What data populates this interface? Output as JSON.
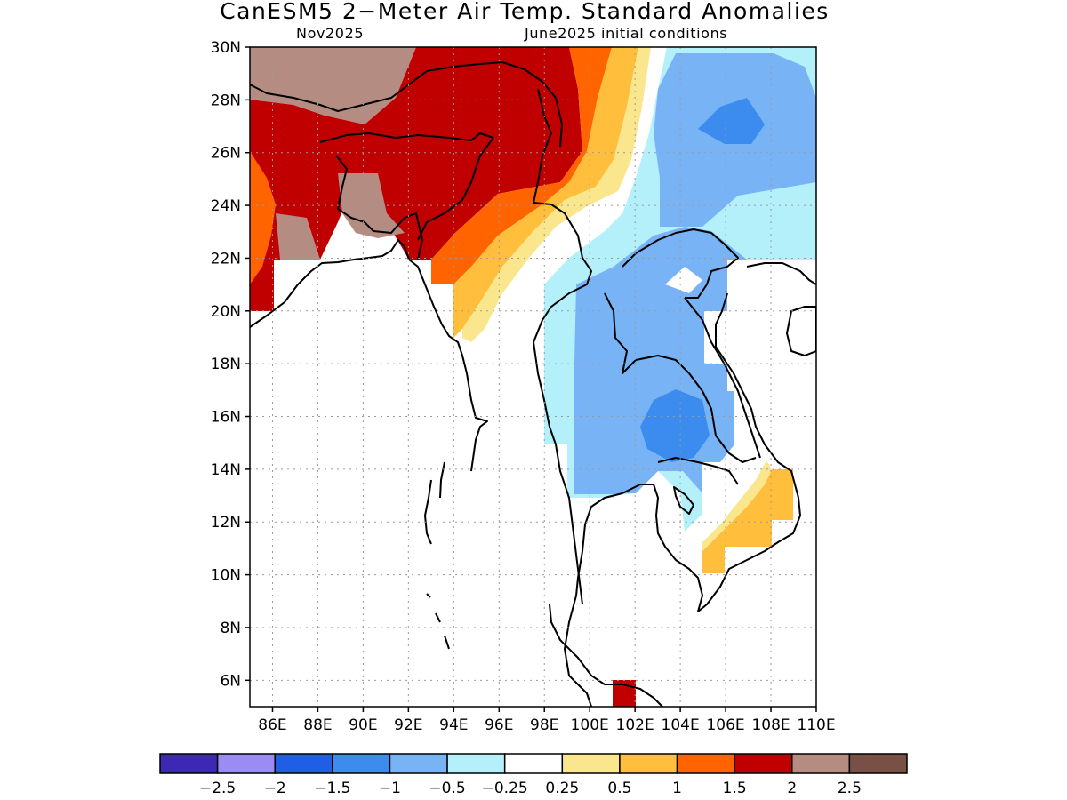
{
  "header": {
    "title": "CanESM5 2−Meter Air Temp. Standard Anomalies",
    "target_month": "Nov2025",
    "initial_conditions": "June2025 initial conditions"
  },
  "map": {
    "lat_labels": [
      "30N",
      "28N",
      "26N",
      "24N",
      "22N",
      "20N",
      "18N",
      "16N",
      "14N",
      "12N",
      "10N",
      "8N",
      "6N"
    ],
    "lon_labels": [
      "86E",
      "88E",
      "90E",
      "92E",
      "94E",
      "96E",
      "98E",
      "100E",
      "102E",
      "104E",
      "106E",
      "108E",
      "110E"
    ],
    "lat_range": [
      5,
      30
    ],
    "lon_range": [
      85,
      110
    ],
    "grid": "dotted"
  },
  "colorbar": {
    "colors": [
      "#3c28b4",
      "#9b8cf5",
      "#1e5fe6",
      "#3c8cf0",
      "#78b4f5",
      "#b4f0fa",
      "#ffffff",
      "#fae68c",
      "#ffbe3c",
      "#ff6400",
      "#c00000",
      "#b48c82",
      "#785046"
    ],
    "labels": [
      "−2.5",
      "−2",
      "−1.5",
      "−1",
      "−0.5",
      "−0.25",
      "0.25",
      "0.5",
      "1",
      "1.5",
      "2",
      "2.5"
    ]
  }
}
